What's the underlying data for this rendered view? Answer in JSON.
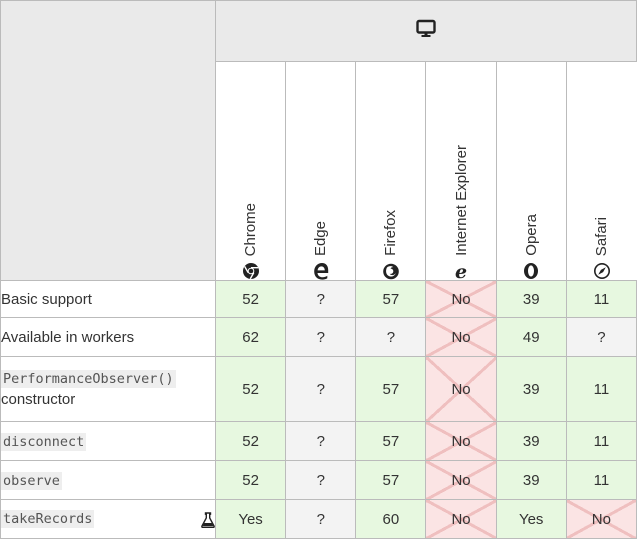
{
  "header": {
    "platform_icon": "desktop-icon"
  },
  "browsers": [
    {
      "name": "Chrome",
      "icon": "chrome-icon"
    },
    {
      "name": "Edge",
      "icon": "edge-icon"
    },
    {
      "name": "Firefox",
      "icon": "firefox-icon"
    },
    {
      "name": "Internet Explorer",
      "icon": "ie-icon"
    },
    {
      "name": "Opera",
      "icon": "opera-icon"
    },
    {
      "name": "Safari",
      "icon": "safari-icon"
    }
  ],
  "features": [
    {
      "name": "Basic support",
      "code": false,
      "values": [
        "52",
        "?",
        "57",
        "No",
        "39",
        "11"
      ]
    },
    {
      "name": "Available in workers",
      "code": false,
      "values": [
        "62",
        "?",
        "?",
        "No",
        "49",
        "?"
      ]
    },
    {
      "name": "PerformanceObserver()",
      "sub": "constructor",
      "code": true,
      "values": [
        "52",
        "?",
        "57",
        "No",
        "39",
        "11"
      ]
    },
    {
      "name": "disconnect",
      "code": true,
      "values": [
        "52",
        "?",
        "57",
        "No",
        "39",
        "11"
      ]
    },
    {
      "name": "observe",
      "code": true,
      "values": [
        "52",
        "?",
        "57",
        "No",
        "39",
        "11"
      ]
    },
    {
      "name": "takeRecords",
      "code": true,
      "experimental_icon": "flask-icon",
      "values": [
        "Yes",
        "?",
        "60",
        "No",
        "Yes",
        "No"
      ]
    }
  ],
  "colors": {
    "yes": "#e7f8e0",
    "no": "#fbe4e4",
    "unknown": "#f3f3f3",
    "border": "#bbbbbb",
    "header_bg": "#eaeaea"
  }
}
